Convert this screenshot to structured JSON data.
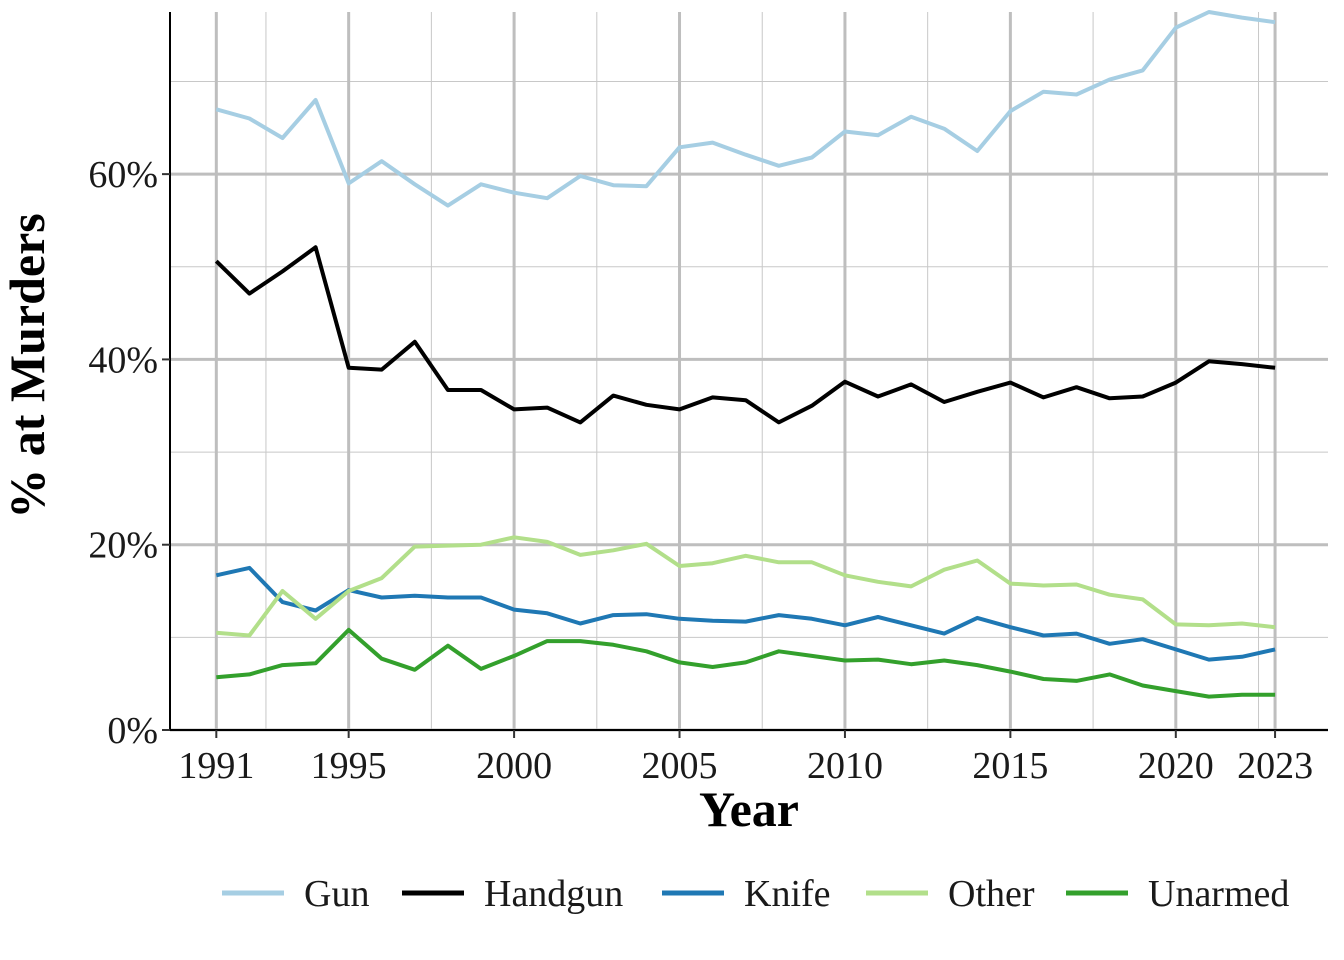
{
  "chart_data": {
    "type": "line",
    "title": "",
    "xlabel": "Year",
    "ylabel": "% at Murders",
    "x": [
      1991,
      1992,
      1993,
      1994,
      1995,
      1996,
      1997,
      1998,
      1999,
      2000,
      2001,
      2002,
      2003,
      2004,
      2005,
      2006,
      2007,
      2008,
      2009,
      2010,
      2011,
      2012,
      2013,
      2014,
      2015,
      2016,
      2017,
      2018,
      2019,
      2020,
      2021,
      2022,
      2023
    ],
    "xlim": [
      1989.6,
      2024.6
    ],
    "ylim": [
      0,
      77.5
    ],
    "x_ticks": [
      "1991",
      "1995",
      "2000",
      "2005",
      "2010",
      "2015",
      "2020",
      "2023"
    ],
    "x_tick_values": [
      1991,
      1995,
      2000,
      2005,
      2010,
      2015,
      2020,
      2023
    ],
    "y_ticks": [
      "0%",
      "20%",
      "40%",
      "60%"
    ],
    "y_tick_values": [
      0,
      20,
      40,
      60
    ],
    "grid": true,
    "legend_position": "bottom",
    "series": [
      {
        "name": "Gun",
        "color": "#a6cee3",
        "values": [
          67.0,
          66.0,
          63.9,
          68.0,
          59.0,
          61.4,
          58.9,
          56.6,
          58.9,
          58.0,
          57.4,
          59.8,
          58.8,
          58.7,
          62.9,
          63.4,
          62.1,
          60.9,
          61.8,
          64.6,
          64.2,
          66.2,
          64.9,
          62.5,
          66.8,
          68.9,
          68.6,
          70.2,
          71.2,
          75.8,
          77.5,
          76.9,
          76.4
        ]
      },
      {
        "name": "Handgun",
        "color": "#000000",
        "values": [
          50.6,
          47.1,
          49.5,
          52.1,
          39.1,
          38.9,
          41.9,
          36.7,
          36.7,
          34.6,
          34.8,
          33.2,
          36.1,
          35.1,
          34.6,
          35.9,
          35.6,
          33.2,
          35.0,
          37.6,
          36.0,
          37.3,
          35.4,
          36.5,
          37.5,
          35.9,
          37.0,
          35.8,
          36.0,
          37.5,
          39.8,
          39.5,
          39.1
        ]
      },
      {
        "name": "Knife",
        "color": "#1f78b4",
        "values": [
          16.7,
          17.5,
          13.8,
          12.9,
          15.1,
          14.3,
          14.5,
          14.3,
          14.3,
          13.0,
          12.6,
          11.5,
          12.4,
          12.5,
          12.0,
          11.8,
          11.7,
          12.4,
          12.0,
          11.3,
          12.2,
          11.3,
          10.4,
          12.1,
          11.1,
          10.2,
          10.4,
          9.3,
          9.8,
          8.7,
          7.6,
          7.9,
          8.7
        ]
      },
      {
        "name": "Other",
        "color": "#b2df8a",
        "values": [
          10.5,
          10.2,
          15.0,
          12.0,
          15.0,
          16.4,
          19.8,
          19.9,
          20.0,
          20.8,
          20.3,
          18.9,
          19.4,
          20.1,
          17.7,
          18.0,
          18.8,
          18.1,
          18.1,
          16.7,
          16.0,
          15.5,
          17.3,
          18.3,
          15.8,
          15.6,
          15.7,
          14.6,
          14.1,
          11.4,
          11.3,
          11.5,
          11.1
        ]
      },
      {
        "name": "Unarmed",
        "color": "#33a02c",
        "values": [
          5.7,
          6.0,
          7.0,
          7.2,
          10.8,
          7.7,
          6.5,
          9.1,
          6.6,
          8.0,
          9.6,
          9.6,
          9.2,
          8.5,
          7.3,
          6.8,
          7.3,
          8.5,
          8.0,
          7.5,
          7.6,
          7.1,
          7.5,
          7.0,
          6.3,
          5.5,
          5.3,
          6.0,
          4.8,
          4.2,
          3.6,
          3.8,
          3.8
        ]
      }
    ]
  }
}
